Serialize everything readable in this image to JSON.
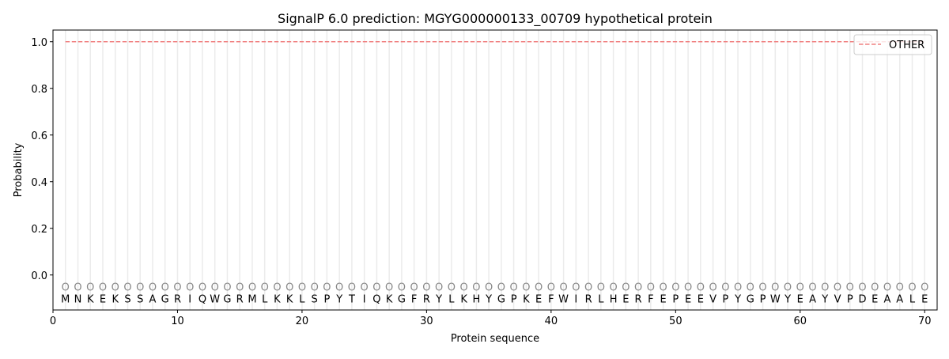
{
  "chart_data": {
    "type": "line",
    "title": "SignalP 6.0 prediction: MGYG000000133_00709 hypothetical protein",
    "xlabel": "Protein sequence",
    "ylabel": "Probability",
    "xlim": [
      0,
      71
    ],
    "ylim": [
      -0.15,
      1.05
    ],
    "xticks": [
      0,
      10,
      20,
      30,
      40,
      50,
      60,
      70
    ],
    "yticks": [
      0.0,
      0.2,
      0.4,
      0.6,
      0.8,
      1.0
    ],
    "ytick_labels": [
      "0.0",
      "0.2",
      "0.4",
      "0.6",
      "0.8",
      "1.0"
    ],
    "legend": {
      "placement": "top-right",
      "entries": [
        "OTHER"
      ]
    },
    "series": [
      {
        "name": "OTHER",
        "color": "#f08080",
        "style": "dashed",
        "x_start": 1,
        "x_end": 70,
        "value": 1.0
      }
    ],
    "sequence": [
      "M",
      "N",
      "K",
      "E",
      "K",
      "S",
      "S",
      "A",
      "G",
      "R",
      "I",
      "Q",
      "W",
      "G",
      "R",
      "M",
      "L",
      "K",
      "K",
      "L",
      "S",
      "P",
      "Y",
      "T",
      "I",
      "Q",
      "K",
      "G",
      "F",
      "R",
      "Y",
      "L",
      "K",
      "H",
      "Y",
      "G",
      "P",
      "K",
      "E",
      "F",
      "W",
      "I",
      "R",
      "L",
      "H",
      "E",
      "R",
      "F",
      "E",
      "P",
      "E",
      "E",
      "V",
      "P",
      "Y",
      "G",
      "P",
      "W",
      "Y",
      "E",
      "A",
      "Y",
      "V",
      "P",
      "D",
      "E",
      "A",
      "A",
      "L",
      "E"
    ],
    "predicted_labels": "OOOOOOOOOOOOOOOOOOOOOOOOOOOOOOOOOOOOOOOOOOOOOOOOOOOOOOOOOOOOOOOOOOOOOO",
    "grid_color": "#ebebeb"
  }
}
